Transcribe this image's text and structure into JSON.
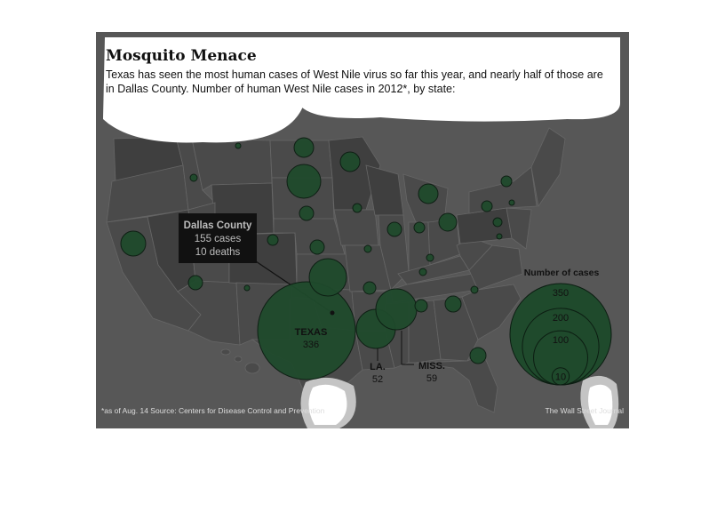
{
  "title": "Mosquito Menace",
  "subtitle": "Texas has seen the most human cases of West Nile virus so far this year, and nearly half of those are in Dallas County. Number of human West Nile cases in 2012*, by state:",
  "callout": {
    "line1": "Dallas County",
    "line2": "155 cases",
    "line3": "10 deaths"
  },
  "labels": {
    "texas_name": "TEXAS",
    "texas_value": "336",
    "la_name": "LA.",
    "la_value": "52",
    "miss_name": "MISS.",
    "miss_value": "59"
  },
  "legend": {
    "title": "Number of cases",
    "levels": [
      350,
      200,
      100,
      10
    ],
    "level_labels": [
      "350",
      "200",
      "100",
      "10"
    ]
  },
  "footnote": "*as of Aug. 14   Source: Centers for Disease Control and Prevention",
  "credit": "The Wall Street Journal",
  "colors": {
    "background": "#575757",
    "state_fill": "#4a4a4a",
    "bubble_fill": "#1f4a2c",
    "callout_bg": "#111111"
  }
}
